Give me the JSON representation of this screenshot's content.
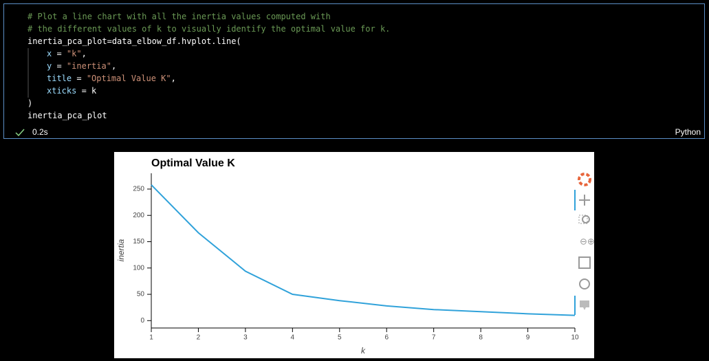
{
  "cell": {
    "lines": [
      [
        {
          "text": "# Plot a line chart with all the inertia values computed with",
          "color": "#6a9955"
        }
      ],
      [
        {
          "text": "# the different values of k to visually identify the optimal value for k.",
          "color": "#6a9955"
        }
      ],
      [
        {
          "text": "inertia_pca_plot=data_elbow_df.hvplot.line(",
          "color": "#ffffff"
        }
      ],
      [
        {
          "text": "x",
          "color": "#9cdcfe"
        },
        {
          "text": " = ",
          "color": "#ffffff"
        },
        {
          "text": "\"k\"",
          "color": "#ce9178"
        },
        {
          "text": ",",
          "color": "#ffffff"
        }
      ],
      [
        {
          "text": "y",
          "color": "#9cdcfe"
        },
        {
          "text": " = ",
          "color": "#ffffff"
        },
        {
          "text": "\"inertia\"",
          "color": "#ce9178"
        },
        {
          "text": ",",
          "color": "#ffffff"
        }
      ],
      [
        {
          "text": "title",
          "color": "#9cdcfe"
        },
        {
          "text": " = ",
          "color": "#ffffff"
        },
        {
          "text": "\"Optimal Value K\"",
          "color": "#ce9178"
        },
        {
          "text": ",",
          "color": "#ffffff"
        }
      ],
      [
        {
          "text": "xticks",
          "color": "#9cdcfe"
        },
        {
          "text": " = ",
          "color": "#ffffff"
        },
        {
          "text": "k",
          "color": "#ffffff"
        }
      ],
      [
        {
          "text": ")",
          "color": "#ffffff"
        }
      ],
      [
        {
          "text": "inertia_pca_plot",
          "color": "#ffffff"
        }
      ]
    ],
    "status": "0.2s",
    "language": "Python"
  },
  "chart_data": {
    "type": "line",
    "title": "Optimal Value K",
    "x_label": "k",
    "y_label": "inertia",
    "x": [
      1,
      2,
      3,
      4,
      5,
      6,
      7,
      8,
      9,
      10
    ],
    "values": [
      258,
      167,
      94,
      50,
      38,
      28,
      21,
      17,
      13,
      10
    ],
    "color": "#30a2da",
    "xlim": [
      1,
      10
    ],
    "ylim": [
      -14,
      280
    ],
    "xticks": [
      1,
      2,
      3,
      4,
      5,
      6,
      7,
      8,
      9,
      10
    ],
    "yticks": [
      0,
      50,
      100,
      150,
      200,
      250
    ]
  }
}
